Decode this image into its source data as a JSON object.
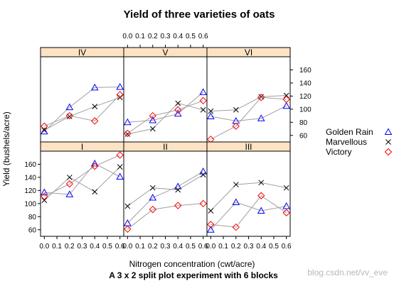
{
  "chart_data": {
    "type": "line",
    "title": "Yield of three varieties of oats",
    "subtitle": "A 3 x 2 split plot experiment with 6 blocks",
    "xlabel": "Nitrogen concentration (cwt/acre)",
    "ylabel": "Yield (bushels/acre)",
    "x": [
      0.0,
      0.2,
      0.4,
      0.6
    ],
    "xticks": [
      "0.0",
      "0.1",
      "0.2",
      "0.3",
      "0.4",
      "0.5",
      "0.6"
    ],
    "xtick_values": [
      0.0,
      0.1,
      0.2,
      0.3,
      0.4,
      0.5,
      0.6
    ],
    "yticks": [
      "60",
      "80",
      "100",
      "120",
      "140",
      "160"
    ],
    "ytick_values": [
      60,
      80,
      100,
      120,
      140,
      160
    ],
    "xlim": [
      -0.03,
      0.63
    ],
    "ylim": [
      50,
      180
    ],
    "legend_position": "right",
    "grid": false,
    "layout": {
      "columns": 3,
      "rows": 2
    },
    "series_styles": [
      {
        "name": "Golden Rain",
        "color": "#0000ff",
        "marker": "triangle"
      },
      {
        "name": "Marvellous",
        "color": "#000000",
        "marker": "cross"
      },
      {
        "name": "Victory",
        "color": "#ff0000",
        "marker": "diamond"
      }
    ],
    "line_color": "#a0a0a0",
    "strip_color": "#fde3c3",
    "panels": [
      {
        "label": "IV",
        "row": 0,
        "col": 0,
        "series": [
          {
            "name": "Golden Rain",
            "values": [
              66,
              103,
              133,
              134
            ]
          },
          {
            "name": "Marvellous",
            "values": [
              68,
              89,
              104,
              118
            ]
          },
          {
            "name": "Victory",
            "values": [
              74,
              90,
              82,
              122
            ]
          }
        ]
      },
      {
        "label": "V",
        "row": 0,
        "col": 1,
        "series": [
          {
            "name": "Golden Rain",
            "values": [
              80,
              83,
              93,
              126
            ]
          },
          {
            "name": "Marvellous",
            "values": [
              62,
              70,
              109,
              99
            ]
          },
          {
            "name": "Victory",
            "values": [
              63,
              90,
              99,
              113
            ]
          }
        ]
      },
      {
        "label": "VI",
        "row": 0,
        "col": 2,
        "series": [
          {
            "name": "Golden Rain",
            "values": [
              89,
              82,
              86,
              105
            ]
          },
          {
            "name": "Marvellous",
            "values": [
              97,
              99,
              119,
              121
            ]
          },
          {
            "name": "Victory",
            "values": [
              54,
              74,
              118,
              115
            ]
          }
        ]
      },
      {
        "label": "I",
        "row": 1,
        "col": 0,
        "series": [
          {
            "name": "Golden Rain",
            "values": [
              117,
              114,
              161,
              141
            ]
          },
          {
            "name": "Marvellous",
            "values": [
              105,
              140,
              118,
              156
            ]
          },
          {
            "name": "Victory",
            "values": [
              111,
              130,
              157,
              174
            ]
          }
        ]
      },
      {
        "label": "II",
        "row": 1,
        "col": 1,
        "series": [
          {
            "name": "Golden Rain",
            "values": [
              70,
              109,
              126,
              149
            ]
          },
          {
            "name": "Marvellous",
            "values": [
              96,
              124,
              121,
              144
            ]
          },
          {
            "name": "Victory",
            "values": [
              61,
              91,
              97,
              100
            ]
          }
        ]
      },
      {
        "label": "III",
        "row": 1,
        "col": 2,
        "series": [
          {
            "name": "Golden Rain",
            "values": [
              60,
              102,
              89,
              96
            ]
          },
          {
            "name": "Marvellous",
            "values": [
              89,
              129,
              132,
              124
            ]
          },
          {
            "name": "Victory",
            "values": [
              68,
              64,
              112,
              86
            ]
          }
        ]
      }
    ]
  },
  "watermark": "blog.csdn.net/vv_eve"
}
